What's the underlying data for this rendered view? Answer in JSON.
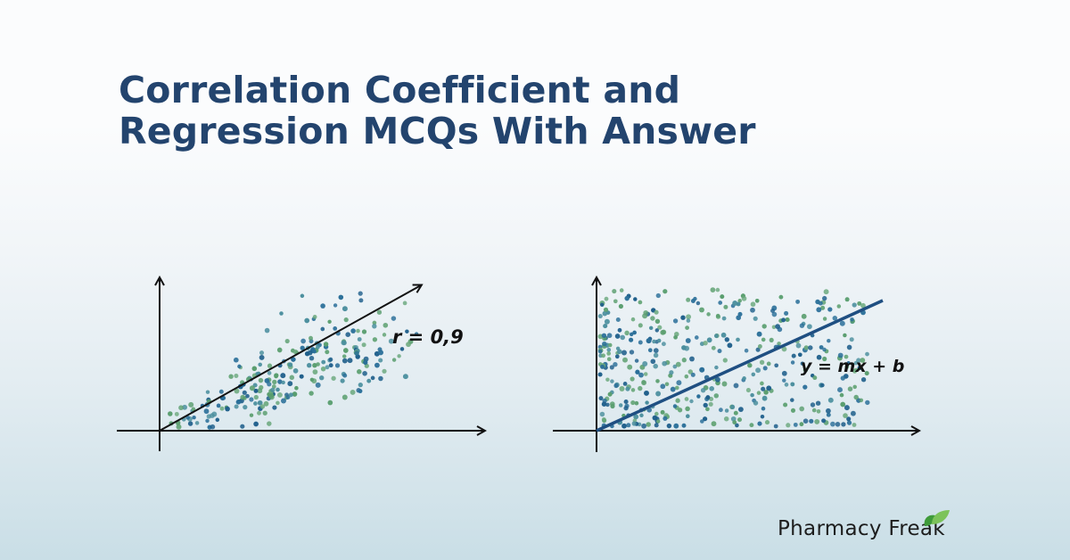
{
  "title": {
    "line1": "Correlation Coefficient and",
    "line2": "Regression MCQs With Answer",
    "color": "#23446e"
  },
  "left_chart": {
    "annotation": "r = 0,9",
    "line_color": "#111111",
    "description": "Positively correlated scatter plot with trend arrow"
  },
  "right_chart": {
    "annotation": "y = mx + b",
    "line_color": "#1f4f82",
    "description": "Weakly correlated scatter plot with regression line"
  },
  "brand": {
    "name": "Pharmacy Freak",
    "logo": "leaf-icon",
    "leaf_colors": [
      "#3f9b3a",
      "#7cc35a"
    ]
  },
  "colors": {
    "dots": [
      "#1f5f8b",
      "#2a6f99",
      "#4b8f9e",
      "#5a9e6f",
      "#6aa87c"
    ],
    "background_top": "#fbfcfd",
    "background_bottom": "#c9dee6"
  },
  "chart_data": [
    {
      "type": "scatter",
      "title": "",
      "xlabel": "",
      "ylabel": "",
      "annotation": "r = 0,9",
      "correlation": 0.9,
      "trend_line": {
        "from": [
          0,
          0
        ],
        "to": [
          1,
          1
        ],
        "style": "arrow"
      },
      "point_count": 260,
      "grid": false,
      "legend": null
    },
    {
      "type": "scatter",
      "title": "",
      "xlabel": "",
      "ylabel": "",
      "annotation": "y = mx + b",
      "trend_line": {
        "from": [
          0,
          0
        ],
        "to": [
          1,
          0.9
        ],
        "style": "line"
      },
      "point_count": 420,
      "grid": false,
      "legend": null
    }
  ]
}
